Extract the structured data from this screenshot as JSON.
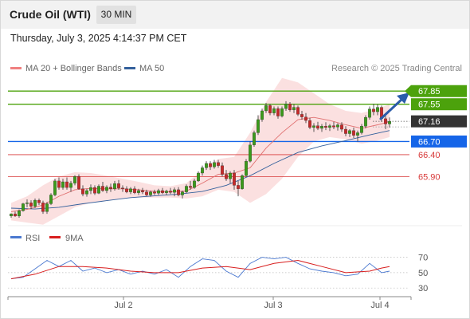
{
  "header": {
    "title": "Crude Oil (WTI)",
    "timeframe": "30 MIN"
  },
  "timestamp": "Thursday, July 3, 2025 4:14:37 PM CET",
  "legend": [
    {
      "label": "MA 20 + Bollinger Bands",
      "color": "#f08080"
    },
    {
      "label": "MA 50",
      "color": "#34609c"
    }
  ],
  "credit": "Research © 2025 Trading Central",
  "rsi_legend": [
    {
      "label": "RSI",
      "color": "#4a78d0"
    },
    {
      "label": "9MA",
      "color": "#d81e1e"
    }
  ],
  "chart_data": {
    "type": "candlestick",
    "title": "Crude Oil (WTI)",
    "timeframe": "30 MIN",
    "x_ticks": [
      "Jul 2",
      "Jul 3",
      "Jul 4"
    ],
    "levels": [
      {
        "value": 67.85,
        "label": "67.85",
        "kind": "resistance",
        "color": "#4ca20c"
      },
      {
        "value": 67.55,
        "label": "67.55",
        "kind": "resistance",
        "color": "#4ca20c"
      },
      {
        "value": 67.16,
        "label": "67.16",
        "kind": "last-price",
        "color": "#333333"
      },
      {
        "value": 66.7,
        "label": "66.70",
        "kind": "pivot",
        "color": "#1565e8"
      },
      {
        "value": 66.4,
        "label": "66.40",
        "kind": "support",
        "color": "#d83a3a"
      },
      {
        "value": 65.9,
        "label": "65.90",
        "kind": "support",
        "color": "#d83a3a"
      }
    ],
    "candles": [
      [
        65.0,
        65.06,
        64.96,
        65.05
      ],
      [
        65.05,
        65.1,
        64.98,
        65.0
      ],
      [
        65.0,
        65.15,
        64.96,
        65.12
      ],
      [
        65.12,
        65.3,
        65.1,
        65.28
      ],
      [
        65.28,
        65.38,
        65.2,
        65.3
      ],
      [
        65.3,
        65.36,
        65.16,
        65.22
      ],
      [
        65.22,
        65.4,
        65.18,
        65.36
      ],
      [
        65.36,
        65.4,
        65.25,
        65.3
      ],
      [
        65.3,
        65.35,
        65.05,
        65.1
      ],
      [
        65.1,
        65.32,
        65.05,
        65.28
      ],
      [
        65.28,
        65.52,
        65.25,
        65.48
      ],
      [
        65.48,
        65.85,
        65.45,
        65.8
      ],
      [
        65.8,
        65.88,
        65.6,
        65.65
      ],
      [
        65.65,
        65.85,
        65.6,
        65.78
      ],
      [
        65.78,
        65.88,
        65.6,
        65.65
      ],
      [
        65.65,
        65.8,
        65.55,
        65.75
      ],
      [
        65.75,
        65.93,
        65.7,
        65.9
      ],
      [
        65.9,
        65.95,
        65.6,
        65.62
      ],
      [
        65.62,
        65.7,
        65.45,
        65.5
      ],
      [
        65.5,
        65.62,
        65.44,
        65.58
      ],
      [
        65.58,
        65.72,
        65.5,
        65.65
      ],
      [
        65.65,
        65.7,
        65.48,
        65.52
      ],
      [
        65.52,
        65.72,
        65.5,
        65.68
      ],
      [
        65.68,
        65.78,
        65.55,
        65.58
      ],
      [
        65.58,
        65.7,
        65.52,
        65.66
      ],
      [
        65.66,
        65.74,
        65.55,
        65.62
      ],
      [
        65.62,
        65.8,
        65.58,
        65.74
      ],
      [
        65.74,
        65.82,
        65.6,
        65.64
      ],
      [
        65.64,
        65.7,
        65.55,
        65.62
      ],
      [
        65.62,
        65.68,
        65.52,
        65.55
      ],
      [
        65.55,
        65.66,
        65.5,
        65.62
      ],
      [
        65.62,
        65.68,
        65.5,
        65.53
      ],
      [
        65.53,
        65.62,
        65.48,
        65.58
      ],
      [
        65.58,
        65.64,
        65.5,
        65.55
      ],
      [
        65.55,
        65.6,
        65.45,
        65.48
      ],
      [
        65.48,
        65.58,
        65.44,
        65.55
      ],
      [
        65.55,
        65.6,
        65.48,
        65.52
      ],
      [
        65.52,
        65.62,
        65.48,
        65.58
      ],
      [
        65.58,
        65.64,
        65.5,
        65.53
      ],
      [
        65.53,
        65.6,
        65.48,
        65.57
      ],
      [
        65.57,
        65.64,
        65.5,
        65.54
      ],
      [
        65.54,
        65.65,
        65.45,
        65.6
      ],
      [
        65.6,
        65.66,
        65.45,
        65.48
      ],
      [
        65.48,
        65.58,
        65.4,
        65.55
      ],
      [
        65.55,
        65.72,
        65.52,
        65.68
      ],
      [
        65.68,
        65.8,
        65.6,
        65.65
      ],
      [
        65.65,
        65.85,
        65.62,
        65.8
      ],
      [
        65.8,
        66.02,
        65.78,
        65.98
      ],
      [
        65.98,
        66.15,
        65.92,
        66.1
      ],
      [
        66.1,
        66.25,
        66.05,
        66.2
      ],
      [
        66.2,
        66.25,
        66.05,
        66.12
      ],
      [
        66.12,
        66.28,
        66.08,
        66.22
      ],
      [
        66.22,
        66.28,
        66.1,
        66.15
      ],
      [
        66.15,
        66.22,
        65.9,
        65.95
      ],
      [
        65.95,
        66.05,
        65.8,
        65.85
      ],
      [
        65.85,
        66.02,
        65.75,
        65.98
      ],
      [
        65.98,
        66.05,
        65.6,
        65.7
      ],
      [
        65.7,
        65.8,
        65.45,
        65.62
      ],
      [
        65.62,
        65.95,
        65.6,
        65.92
      ],
      [
        65.92,
        66.3,
        65.9,
        66.25
      ],
      [
        66.25,
        66.7,
        66.22,
        66.62
      ],
      [
        66.62,
        66.95,
        66.58,
        66.9
      ],
      [
        66.9,
        67.3,
        66.85,
        67.2
      ],
      [
        67.2,
        67.45,
        67.15,
        67.4
      ],
      [
        67.4,
        67.58,
        67.35,
        67.52
      ],
      [
        67.52,
        67.56,
        67.3,
        67.35
      ],
      [
        67.35,
        67.5,
        67.3,
        67.45
      ],
      [
        67.45,
        67.5,
        67.22,
        67.28
      ],
      [
        67.28,
        67.5,
        67.25,
        67.45
      ],
      [
        67.45,
        67.62,
        67.4,
        67.56
      ],
      [
        67.56,
        67.6,
        67.38,
        67.42
      ],
      [
        67.42,
        67.55,
        67.35,
        67.48
      ],
      [
        67.48,
        67.52,
        67.28,
        67.32
      ],
      [
        67.32,
        67.4,
        67.2,
        67.26
      ],
      [
        67.26,
        67.35,
        67.12,
        67.18
      ],
      [
        67.18,
        67.24,
        66.98,
        67.02
      ],
      [
        67.02,
        67.12,
        66.92,
        67.06
      ],
      [
        67.06,
        67.15,
        66.96,
        67.0
      ],
      [
        67.0,
        67.1,
        66.92,
        67.05
      ],
      [
        67.05,
        67.14,
        66.96,
        67.02
      ],
      [
        67.02,
        67.1,
        66.94,
        67.06
      ],
      [
        67.06,
        67.15,
        66.98,
        67.03
      ],
      [
        67.03,
        67.12,
        66.95,
        67.08
      ],
      [
        67.08,
        67.14,
        66.92,
        66.98
      ],
      [
        66.98,
        67.05,
        66.82,
        66.88
      ],
      [
        66.88,
        66.98,
        66.8,
        66.95
      ],
      [
        66.95,
        67.02,
        66.78,
        66.84
      ],
      [
        66.84,
        66.95,
        66.7,
        66.9
      ],
      [
        66.9,
        67.1,
        66.86,
        67.05
      ],
      [
        67.05,
        67.3,
        67.0,
        67.25
      ],
      [
        67.25,
        67.5,
        67.2,
        67.44
      ],
      [
        67.44,
        67.56,
        67.3,
        67.38
      ],
      [
        67.38,
        67.55,
        67.3,
        67.48
      ],
      [
        67.48,
        67.52,
        67.15,
        67.22
      ],
      [
        67.22,
        67.28,
        66.98,
        67.1
      ],
      [
        67.1,
        67.25,
        67.02,
        67.16
      ]
    ],
    "ma20": [
      [
        0,
        65.1
      ],
      [
        4,
        65.15
      ],
      [
        8,
        65.25
      ],
      [
        12,
        65.45
      ],
      [
        16,
        65.6
      ],
      [
        20,
        65.63
      ],
      [
        24,
        65.62
      ],
      [
        28,
        65.62
      ],
      [
        32,
        65.6
      ],
      [
        36,
        65.56
      ],
      [
        40,
        65.55
      ],
      [
        44,
        65.57
      ],
      [
        48,
        65.75
      ],
      [
        52,
        65.95
      ],
      [
        56,
        65.98
      ],
      [
        60,
        66.1
      ],
      [
        64,
        66.55
      ],
      [
        68,
        66.9
      ],
      [
        72,
        67.2
      ],
      [
        76,
        67.25
      ],
      [
        80,
        67.18
      ],
      [
        84,
        67.08
      ],
      [
        88,
        67.0
      ],
      [
        92,
        67.08
      ],
      [
        95,
        67.15
      ]
    ],
    "bb_upper": [
      [
        0,
        65.3
      ],
      [
        4,
        65.45
      ],
      [
        8,
        65.7
      ],
      [
        12,
        65.9
      ],
      [
        16,
        66.0
      ],
      [
        20,
        65.98
      ],
      [
        24,
        65.92
      ],
      [
        28,
        65.85
      ],
      [
        32,
        65.78
      ],
      [
        36,
        65.7
      ],
      [
        40,
        65.68
      ],
      [
        44,
        65.75
      ],
      [
        48,
        66.05
      ],
      [
        52,
        66.3
      ],
      [
        56,
        66.35
      ],
      [
        60,
        66.9
      ],
      [
        64,
        67.6
      ],
      [
        68,
        68.15
      ],
      [
        72,
        68.05
      ],
      [
        76,
        67.8
      ],
      [
        80,
        67.55
      ],
      [
        84,
        67.4
      ],
      [
        88,
        67.35
      ],
      [
        92,
        67.45
      ],
      [
        95,
        67.55
      ]
    ],
    "bb_lower": [
      [
        0,
        64.9
      ],
      [
        4,
        64.85
      ],
      [
        8,
        64.8
      ],
      [
        12,
        65.0
      ],
      [
        16,
        65.2
      ],
      [
        20,
        65.3
      ],
      [
        24,
        65.35
      ],
      [
        28,
        65.4
      ],
      [
        32,
        65.42
      ],
      [
        36,
        65.42
      ],
      [
        40,
        65.42
      ],
      [
        44,
        65.4
      ],
      [
        48,
        65.45
      ],
      [
        52,
        65.6
      ],
      [
        56,
        65.55
      ],
      [
        60,
        65.3
      ],
      [
        64,
        65.5
      ],
      [
        68,
        65.85
      ],
      [
        72,
        66.35
      ],
      [
        76,
        66.7
      ],
      [
        80,
        66.8
      ],
      [
        84,
        66.75
      ],
      [
        88,
        66.65
      ],
      [
        92,
        66.72
      ],
      [
        95,
        66.8
      ]
    ],
    "ma50": [
      [
        0,
        65.18
      ],
      [
        6,
        65.16
      ],
      [
        12,
        65.2
      ],
      [
        18,
        65.28
      ],
      [
        24,
        65.35
      ],
      [
        30,
        65.42
      ],
      [
        36,
        65.46
      ],
      [
        42,
        65.5
      ],
      [
        48,
        65.56
      ],
      [
        54,
        65.7
      ],
      [
        60,
        65.92
      ],
      [
        66,
        66.2
      ],
      [
        72,
        66.45
      ],
      [
        78,
        66.6
      ],
      [
        84,
        66.72
      ],
      [
        90,
        66.85
      ],
      [
        95,
        66.95
      ]
    ],
    "rsi": {
      "levels": [
        70,
        50,
        30
      ],
      "rsi": [
        [
          0,
          42
        ],
        [
          3,
          44
        ],
        [
          6,
          55
        ],
        [
          9,
          66
        ],
        [
          12,
          58
        ],
        [
          15,
          66
        ],
        [
          18,
          52
        ],
        [
          21,
          56
        ],
        [
          24,
          50
        ],
        [
          27,
          54
        ],
        [
          30,
          48
        ],
        [
          33,
          52
        ],
        [
          36,
          48
        ],
        [
          39,
          54
        ],
        [
          42,
          44
        ],
        [
          45,
          58
        ],
        [
          48,
          68
        ],
        [
          51,
          66
        ],
        [
          54,
          52
        ],
        [
          57,
          44
        ],
        [
          60,
          62
        ],
        [
          63,
          70
        ],
        [
          66,
          68
        ],
        [
          69,
          70
        ],
        [
          72,
          62
        ],
        [
          75,
          55
        ],
        [
          78,
          52
        ],
        [
          81,
          50
        ],
        [
          84,
          46
        ],
        [
          87,
          48
        ],
        [
          90,
          62
        ],
        [
          93,
          50
        ],
        [
          95,
          52
        ]
      ],
      "ma9": [
        [
          0,
          42
        ],
        [
          6,
          48
        ],
        [
          12,
          58
        ],
        [
          18,
          58
        ],
        [
          24,
          56
        ],
        [
          30,
          52
        ],
        [
          36,
          50
        ],
        [
          42,
          50
        ],
        [
          48,
          56
        ],
        [
          54,
          58
        ],
        [
          60,
          54
        ],
        [
          66,
          62
        ],
        [
          72,
          66
        ],
        [
          78,
          58
        ],
        [
          84,
          50
        ],
        [
          90,
          52
        ],
        [
          93,
          56
        ],
        [
          95,
          58
        ]
      ]
    }
  }
}
